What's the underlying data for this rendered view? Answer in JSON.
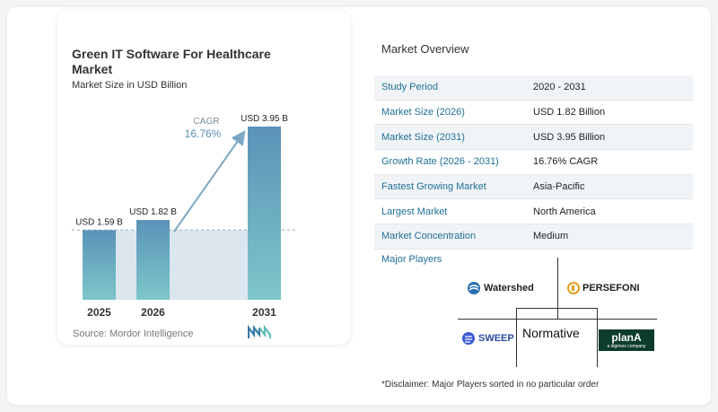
{
  "chart_data": {
    "type": "bar",
    "title": "Green IT Software For Healthcare Market",
    "subtitle": "Market Size in USD Billion",
    "categories": [
      "2025",
      "2026",
      "2031"
    ],
    "values": [
      1.59,
      1.82,
      3.95
    ],
    "value_labels": [
      "USD 1.59 B",
      "USD 1.82 B",
      "USD 3.95 B"
    ],
    "cagr_label": "CAGR",
    "cagr_value": "16.76%",
    "grid": false,
    "colors": {
      "bar_top": "#5b93b8",
      "bar_bottom": "#7ec6c9",
      "shade": "#dce6ef",
      "arrow": "#7ba7c4"
    }
  },
  "source": "Source:  Mordor Intelligence",
  "overview": {
    "title": "Market Overview",
    "rows": [
      {
        "label": "Study Period",
        "value": "2020 - 2031"
      },
      {
        "label": "Market Size (2026)",
        "value": "USD 1.82 Billion"
      },
      {
        "label": "Market Size (2031)",
        "value": "USD 3.95 Billion"
      },
      {
        "label": "Growth Rate (2026 - 2031)",
        "value": "16.76% CAGR"
      },
      {
        "label": "Fastest Growing Market",
        "value": "Asia-Pacific"
      },
      {
        "label": "Largest Market",
        "value": "North America"
      },
      {
        "label": "Market Concentration",
        "value": "Medium"
      }
    ]
  },
  "players": {
    "title": "Major Players",
    "names": [
      "Watershed",
      "PERSEFONI",
      "SWEEP",
      "Normative",
      "planA",
      "a digimex company"
    ]
  },
  "disclaimer": "*Disclaimer: Major Players sorted in no particular order"
}
